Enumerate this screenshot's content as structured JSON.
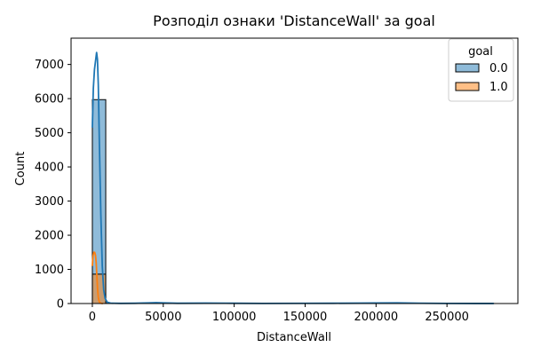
{
  "chart_data": {
    "type": "bar",
    "title": "Розподіл ознаки 'DistanceWall' за goal",
    "xlabel": "DistanceWall",
    "ylabel": "Count",
    "xlim": [
      -15000,
      300000
    ],
    "ylim": [
      0,
      7770
    ],
    "x_ticks": [
      0,
      50000,
      100000,
      150000,
      200000,
      250000
    ],
    "x_tick_labels": [
      "0",
      "50000",
      "100000",
      "150000",
      "200000",
      "250000"
    ],
    "y_ticks": [
      0,
      1000,
      2000,
      3000,
      4000,
      5000,
      6000,
      7000
    ],
    "y_tick_labels": [
      "0",
      "1000",
      "2000",
      "3000",
      "4000",
      "5000",
      "6000",
      "7000"
    ],
    "grid": false,
    "legend": {
      "title": "goal",
      "position": "top-right",
      "entries": [
        "0.0",
        "1.0"
      ]
    },
    "bins": {
      "start": 0,
      "width": 9450,
      "count": 30
    },
    "series": [
      {
        "name": "0.0",
        "color": "#1f77b4",
        "values": [
          5970,
          6,
          3,
          2,
          1,
          1,
          1,
          1,
          1,
          1,
          1,
          1,
          1,
          1,
          1,
          1,
          1,
          1,
          1,
          1,
          1,
          1,
          1,
          1,
          1,
          1,
          1,
          1,
          1,
          1
        ],
        "kde": [
          [
            0,
            5150
          ],
          [
            700,
            6300
          ],
          [
            1500,
            6850
          ],
          [
            2400,
            7150
          ],
          [
            3000,
            7350
          ],
          [
            3600,
            7150
          ],
          [
            4200,
            6400
          ],
          [
            5000,
            4600
          ],
          [
            6000,
            2600
          ],
          [
            7000,
            1100
          ],
          [
            8000,
            400
          ],
          [
            9000,
            150
          ],
          [
            10500,
            40
          ],
          [
            13000,
            10
          ],
          [
            20000,
            5
          ],
          [
            30000,
            8
          ],
          [
            40000,
            20
          ],
          [
            45000,
            25
          ],
          [
            50000,
            18
          ],
          [
            60000,
            8
          ],
          [
            80000,
            12
          ],
          [
            100000,
            8
          ],
          [
            120000,
            4
          ],
          [
            150000,
            6
          ],
          [
            170000,
            8
          ],
          [
            190000,
            12
          ],
          [
            200000,
            16
          ],
          [
            215000,
            18
          ],
          [
            230000,
            10
          ],
          [
            250000,
            4
          ],
          [
            270000,
            2
          ],
          [
            283000,
            1
          ]
        ]
      },
      {
        "name": "1.0",
        "color": "#ff7f0e",
        "values": [
          860,
          0,
          0,
          0,
          0,
          0,
          0,
          0,
          0,
          0,
          0,
          0,
          0,
          0,
          0,
          0,
          0,
          0,
          0,
          0,
          0,
          0,
          0,
          0,
          0,
          0,
          0,
          0,
          0,
          0
        ],
        "kde": [
          [
            0,
            1100
          ],
          [
            500,
            1400
          ],
          [
            1000,
            1500
          ],
          [
            1600,
            1500
          ],
          [
            2200,
            1420
          ],
          [
            2700,
            1200
          ],
          [
            3200,
            800
          ],
          [
            3700,
            420
          ],
          [
            4200,
            180
          ],
          [
            4800,
            60
          ],
          [
            5500,
            15
          ],
          [
            6500,
            3
          ],
          [
            7500,
            0
          ]
        ]
      }
    ]
  }
}
